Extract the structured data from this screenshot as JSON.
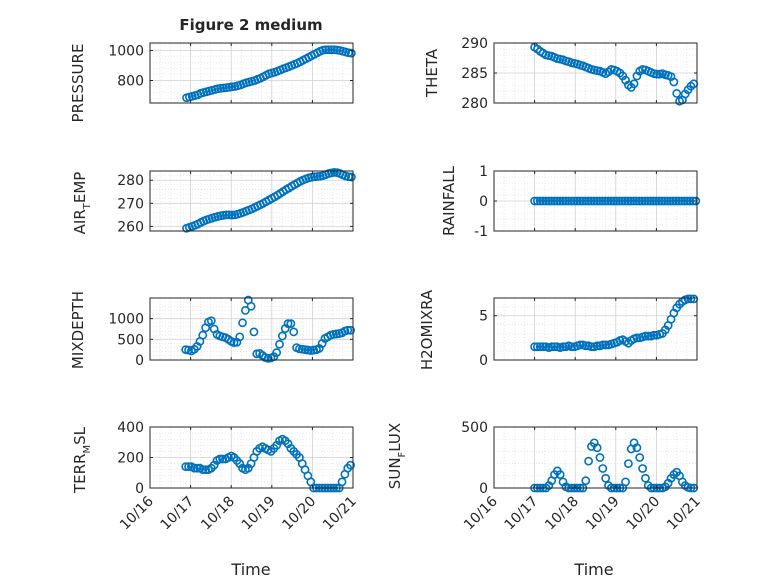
{
  "figure": {
    "title": "Figure 2 medium"
  },
  "labels": {
    "air_temp_a": "AIR",
    "air_temp_sub": "T",
    "air_temp_b": "EMP",
    "terr_a": "TERR",
    "terr_sub": "M",
    "terr_b": "SL",
    "sun_a": "SUN",
    "sun_sub": "F",
    "sun_b": "LUX"
  },
  "colors": {
    "marker": "#0072BD",
    "axis": "#262626",
    "grid": "#dcdcdc"
  },
  "chart_data": [
    {
      "type": "scatter",
      "ylabel": "PRESSURE",
      "ylim": [
        650,
        1050
      ],
      "yticks": [
        800,
        1000
      ],
      "xlim": [
        16,
        21
      ],
      "xtick_labels": [],
      "x": [
        16.9,
        16.97,
        17.04,
        17.11,
        17.18,
        17.25,
        17.32,
        17.39,
        17.46,
        17.53,
        17.6,
        17.67,
        17.74,
        17.81,
        17.88,
        17.95,
        18.02,
        18.09,
        18.16,
        18.23,
        18.3,
        18.37,
        18.44,
        18.51,
        18.58,
        18.65,
        18.72,
        18.79,
        18.86,
        18.93,
        19.0,
        19.07,
        19.14,
        19.21,
        19.28,
        19.35,
        19.42,
        19.49,
        19.56,
        19.63,
        19.7,
        19.77,
        19.84,
        19.91,
        19.98,
        20.05,
        20.12,
        20.19,
        20.26,
        20.33,
        20.4,
        20.47,
        20.54,
        20.61,
        20.68,
        20.75,
        20.82,
        20.89,
        20.96
      ],
      "y": [
        685,
        690,
        695,
        700,
        705,
        715,
        720,
        725,
        730,
        735,
        740,
        745,
        748,
        750,
        752,
        755,
        758,
        760,
        765,
        770,
        778,
        785,
        790,
        795,
        800,
        808,
        815,
        825,
        835,
        845,
        850,
        855,
        862,
        870,
        878,
        885,
        892,
        900,
        908,
        915,
        925,
        935,
        945,
        955,
        965,
        975,
        985,
        995,
        1002,
        1005,
        1005,
        1005,
        1005,
        1003,
        1000,
        995,
        990,
        985,
        982
      ]
    },
    {
      "type": "scatter",
      "ylabel": "THETA",
      "ylim": [
        280,
        290
      ],
      "yticks": [
        280,
        285,
        290
      ],
      "xlim": [
        16,
        21
      ],
      "xtick_labels": [],
      "x": [
        17.0,
        17.07,
        17.14,
        17.21,
        17.28,
        17.35,
        17.42,
        17.49,
        17.56,
        17.63,
        17.7,
        17.77,
        17.84,
        17.91,
        17.98,
        18.05,
        18.12,
        18.19,
        18.26,
        18.33,
        18.4,
        18.47,
        18.54,
        18.61,
        18.68,
        18.75,
        18.82,
        18.89,
        18.96,
        19.03,
        19.1,
        19.17,
        19.24,
        19.31,
        19.38,
        19.45,
        19.52,
        19.59,
        19.66,
        19.73,
        19.8,
        19.87,
        19.94,
        20.01,
        20.08,
        20.15,
        20.22,
        20.29,
        20.36,
        20.43,
        20.5,
        20.57,
        20.64,
        20.71,
        20.78,
        20.85,
        20.92
      ],
      "y": [
        289.3,
        289.0,
        288.6,
        288.3,
        288.0,
        287.9,
        287.8,
        287.6,
        287.4,
        287.3,
        287.2,
        287.0,
        286.9,
        286.7,
        286.6,
        286.5,
        286.3,
        286.2,
        286.0,
        285.8,
        285.6,
        285.5,
        285.4,
        285.3,
        285.1,
        284.9,
        285.2,
        285.6,
        285.5,
        285.3,
        285.0,
        284.5,
        283.8,
        283.0,
        282.6,
        283.2,
        284.5,
        285.3,
        285.6,
        285.5,
        285.3,
        285.1,
        284.9,
        284.8,
        284.8,
        284.9,
        284.7,
        284.6,
        284.4,
        283.5,
        281.6,
        280.3,
        280.5,
        281.5,
        282.2,
        282.8,
        283.2
      ]
    },
    {
      "type": "scatter",
      "ylabel": "AIR_TEMP",
      "ylim": [
        258,
        284
      ],
      "yticks": [
        260,
        270,
        280
      ],
      "xlim": [
        16,
        21
      ],
      "xtick_labels": [],
      "x": [
        16.9,
        16.97,
        17.04,
        17.11,
        17.18,
        17.25,
        17.32,
        17.39,
        17.46,
        17.53,
        17.6,
        17.67,
        17.74,
        17.81,
        17.88,
        17.95,
        18.02,
        18.09,
        18.16,
        18.23,
        18.3,
        18.37,
        18.44,
        18.51,
        18.58,
        18.65,
        18.72,
        18.79,
        18.86,
        18.93,
        19.0,
        19.07,
        19.14,
        19.21,
        19.28,
        19.35,
        19.42,
        19.49,
        19.56,
        19.63,
        19.7,
        19.77,
        19.84,
        19.91,
        19.98,
        20.05,
        20.12,
        20.19,
        20.26,
        20.33,
        20.4,
        20.47,
        20.54,
        20.61,
        20.68,
        20.75,
        20.82,
        20.89,
        20.96
      ],
      "y": [
        259.2,
        259.6,
        260.0,
        260.5,
        261.0,
        261.7,
        262.3,
        262.8,
        263.2,
        263.6,
        264.0,
        264.3,
        264.6,
        264.8,
        265.0,
        265.0,
        264.9,
        265.0,
        265.3,
        265.7,
        266.1,
        266.6,
        267.1,
        267.6,
        268.2,
        268.8,
        269.4,
        270.0,
        270.7,
        271.4,
        272.1,
        272.8,
        273.5,
        274.3,
        275.1,
        275.9,
        276.6,
        277.4,
        278.1,
        278.8,
        279.5,
        280.1,
        280.6,
        281.0,
        281.3,
        281.5,
        281.6,
        281.7,
        282.0,
        282.4,
        282.9,
        283.2,
        283.4,
        283.3,
        282.9,
        282.3,
        281.8,
        281.5,
        281.4
      ]
    },
    {
      "type": "scatter",
      "ylabel": "RAINFALL",
      "ylim": [
        -1,
        1
      ],
      "yticks": [
        -1,
        0,
        1
      ],
      "xlim": [
        16,
        21
      ],
      "xtick_labels": [],
      "x_range": [
        17.0,
        20.97
      ],
      "x_count": 58,
      "y_constant": 0
    },
    {
      "type": "scatter",
      "ylabel": "MIXDEPTH",
      "ylim": [
        0,
        1500
      ],
      "yticks": [
        0,
        500,
        1000
      ],
      "xlim": [
        16,
        21
      ],
      "xtick_labels": [],
      "x": [
        16.88,
        16.95,
        17.02,
        17.09,
        17.16,
        17.23,
        17.3,
        17.37,
        17.44,
        17.51,
        17.58,
        17.65,
        17.72,
        17.79,
        17.86,
        17.93,
        18.0,
        18.07,
        18.14,
        18.21,
        18.28,
        18.35,
        18.42,
        18.49,
        18.56,
        18.63,
        18.7,
        18.77,
        18.84,
        18.91,
        18.98,
        19.05,
        19.12,
        19.19,
        19.26,
        19.33,
        19.4,
        19.47,
        19.54,
        19.61,
        19.68,
        19.75,
        19.82,
        19.89,
        19.96,
        20.03,
        20.1,
        20.17,
        20.24,
        20.31,
        20.38,
        20.45,
        20.52,
        20.59,
        20.66,
        20.73,
        20.8,
        20.87,
        20.94
      ],
      "y": [
        250,
        240,
        220,
        260,
        330,
        450,
        600,
        780,
        920,
        950,
        750,
        620,
        580,
        560,
        540,
        500,
        450,
        420,
        430,
        560,
        900,
        1200,
        1450,
        1300,
        680,
        150,
        160,
        110,
        60,
        40,
        50,
        80,
        180,
        380,
        580,
        760,
        880,
        880,
        680,
        300,
        270,
        260,
        250,
        240,
        230,
        240,
        250,
        280,
        400,
        520,
        560,
        600,
        620,
        630,
        640,
        660,
        700,
        720,
        720
      ]
    },
    {
      "type": "scatter",
      "ylabel": "H2OMIXRA",
      "ylim": [
        0,
        7
      ],
      "yticks": [
        0,
        5
      ],
      "xlim": [
        16,
        21
      ],
      "xtick_labels": [],
      "x": [
        17.0,
        17.07,
        17.14,
        17.21,
        17.28,
        17.35,
        17.42,
        17.49,
        17.56,
        17.63,
        17.7,
        17.77,
        17.84,
        17.91,
        17.98,
        18.05,
        18.12,
        18.19,
        18.26,
        18.33,
        18.4,
        18.47,
        18.54,
        18.61,
        18.68,
        18.75,
        18.82,
        18.89,
        18.96,
        19.03,
        19.1,
        19.17,
        19.24,
        19.31,
        19.38,
        19.45,
        19.52,
        19.59,
        19.66,
        19.73,
        19.8,
        19.87,
        19.94,
        20.01,
        20.08,
        20.15,
        20.22,
        20.29,
        20.36,
        20.43,
        20.5,
        20.57,
        20.64,
        20.71,
        20.78,
        20.85,
        20.92
      ],
      "y": [
        1.5,
        1.5,
        1.5,
        1.5,
        1.5,
        1.4,
        1.5,
        1.5,
        1.5,
        1.4,
        1.5,
        1.5,
        1.6,
        1.5,
        1.5,
        1.6,
        1.7,
        1.7,
        1.6,
        1.6,
        1.5,
        1.5,
        1.6,
        1.6,
        1.7,
        1.7,
        1.7,
        1.8,
        1.9,
        2.0,
        2.2,
        2.3,
        2.1,
        1.9,
        2.2,
        2.4,
        2.5,
        2.5,
        2.6,
        2.7,
        2.7,
        2.7,
        2.8,
        2.8,
        2.9,
        3.0,
        3.4,
        3.9,
        4.6,
        5.3,
        5.9,
        6.3,
        6.6,
        6.8,
        6.9,
        6.9,
        6.9
      ]
    },
    {
      "type": "scatter",
      "ylabel": "TERR_MSL",
      "xlabel": "Time",
      "ylim": [
        0,
        400
      ],
      "yticks": [
        0,
        200,
        400
      ],
      "xlim": [
        16,
        21
      ],
      "xtick_labels": [
        "10/16",
        "10/17",
        "10/18",
        "10/19",
        "10/20",
        "10/21"
      ],
      "x": [
        16.88,
        16.95,
        17.02,
        17.09,
        17.16,
        17.23,
        17.3,
        17.37,
        17.44,
        17.51,
        17.58,
        17.65,
        17.72,
        17.79,
        17.86,
        17.93,
        18.0,
        18.07,
        18.14,
        18.21,
        18.28,
        18.35,
        18.42,
        18.49,
        18.56,
        18.63,
        18.7,
        18.77,
        18.84,
        18.91,
        18.98,
        19.05,
        19.12,
        19.19,
        19.26,
        19.33,
        19.4,
        19.47,
        19.54,
        19.61,
        19.68,
        19.75,
        19.82,
        19.89,
        19.96,
        20.03,
        20.1,
        20.17,
        20.24,
        20.31,
        20.38,
        20.45,
        20.52,
        20.59,
        20.66,
        20.73,
        20.8,
        20.87,
        20.94
      ],
      "y": [
        140,
        140,
        140,
        130,
        130,
        130,
        120,
        120,
        120,
        130,
        150,
        180,
        190,
        190,
        190,
        200,
        210,
        200,
        180,
        160,
        130,
        120,
        130,
        160,
        200,
        240,
        260,
        270,
        260,
        250,
        240,
        260,
        280,
        310,
        320,
        310,
        290,
        260,
        240,
        220,
        200,
        160,
        120,
        80,
        40,
        0,
        0,
        0,
        0,
        0,
        0,
        0,
        0,
        0,
        0,
        40,
        90,
        130,
        150
      ]
    },
    {
      "type": "scatter",
      "ylabel": "SUN_FLUX",
      "xlabel": "Time",
      "ylim": [
        0,
        500
      ],
      "yticks": [
        0,
        500
      ],
      "xlim": [
        16,
        21
      ],
      "xtick_labels": [
        "10/16",
        "10/17",
        "10/18",
        "10/19",
        "10/20",
        "10/21"
      ],
      "x": [
        17.0,
        17.07,
        17.14,
        17.21,
        17.28,
        17.35,
        17.42,
        17.49,
        17.56,
        17.63,
        17.7,
        17.77,
        17.84,
        17.91,
        17.98,
        18.05,
        18.12,
        18.19,
        18.26,
        18.33,
        18.4,
        18.47,
        18.54,
        18.61,
        18.68,
        18.75,
        18.82,
        18.89,
        18.96,
        19.03,
        19.1,
        19.17,
        19.24,
        19.31,
        19.38,
        19.45,
        19.52,
        19.59,
        19.66,
        19.73,
        19.8,
        19.87,
        19.94,
        20.01,
        20.08,
        20.15,
        20.22,
        20.29,
        20.36,
        20.43,
        20.5,
        20.57,
        20.64,
        20.71,
        20.78,
        20.85,
        20.92
      ],
      "y": [
        0,
        0,
        0,
        0,
        0,
        20,
        60,
        110,
        140,
        110,
        50,
        10,
        0,
        0,
        0,
        0,
        0,
        0,
        60,
        220,
        340,
        370,
        330,
        250,
        160,
        80,
        20,
        0,
        0,
        0,
        0,
        0,
        50,
        200,
        320,
        370,
        330,
        250,
        160,
        80,
        20,
        0,
        0,
        0,
        0,
        0,
        10,
        40,
        80,
        110,
        130,
        100,
        50,
        20,
        5,
        0,
        0
      ]
    }
  ]
}
